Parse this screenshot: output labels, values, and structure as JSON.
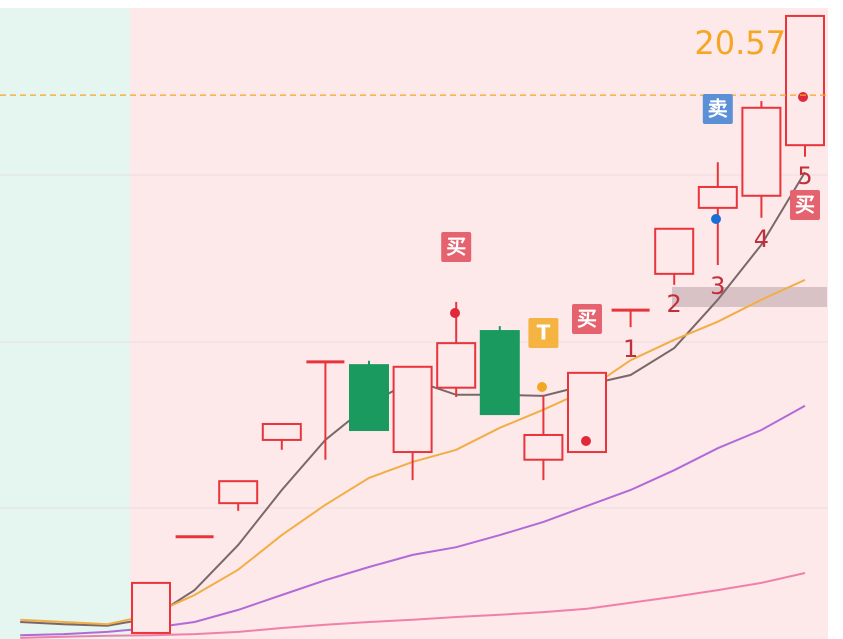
{
  "chart_data": {
    "type": "candlestick",
    "categories": [
      null,
      null,
      null,
      null,
      null,
      null,
      null,
      null,
      null,
      null,
      null,
      null,
      null,
      null,
      null,
      null,
      null,
      null,
      null
    ],
    "open": [
      null,
      null,
      null,
      10.79,
      12.54,
      13.15,
      14.3,
      15.72,
      15.66,
      14.08,
      15.25,
      16.28,
      13.94,
      14.08,
      16.66,
      17.32,
      18.52,
      18.74,
      19.66
    ],
    "close": [
      null,
      null,
      null,
      11.7,
      12.54,
      13.55,
      14.59,
      15.72,
      14.48,
      15.63,
      16.06,
      14.77,
      14.39,
      15.52,
      16.66,
      18.14,
      18.9,
      20.34,
      22.01
    ],
    "high": [
      null,
      null,
      null,
      11.7,
      12.54,
      13.55,
      14.59,
      15.72,
      15.74,
      15.63,
      16.81,
      16.37,
      15.12,
      15.52,
      16.66,
      18.14,
      19.35,
      20.46,
      22.01
    ],
    "low": [
      null,
      null,
      null,
      10.79,
      12.54,
      13.01,
      14.12,
      13.94,
      14.48,
      13.57,
      15.08,
      14.77,
      13.57,
      14.08,
      16.35,
      17.12,
      17.48,
      18.34,
      19.45
    ],
    "up_color": "#e8353b",
    "down_color": "#1a9a5e",
    "series": [
      {
        "color": "#7a6868",
        "values": [
          10.99,
          10.95,
          10.92,
          11.06,
          11.57,
          12.39,
          13.39,
          14.3,
          14.94,
          15.39,
          15.12,
          15.12,
          15.1,
          15.3,
          15.48,
          15.97,
          16.85,
          17.85,
          19.17
        ]
      },
      {
        "color": "#f2ae45",
        "values": [
          11.03,
          10.99,
          10.95,
          11.12,
          11.48,
          11.94,
          12.57,
          13.12,
          13.61,
          13.9,
          14.12,
          14.52,
          14.85,
          15.21,
          15.75,
          16.12,
          16.45,
          16.85,
          17.21
        ]
      },
      {
        "color": "#b26ad6",
        "values": [
          10.75,
          10.77,
          10.81,
          10.88,
          10.99,
          11.21,
          11.48,
          11.75,
          11.99,
          12.21,
          12.35,
          12.57,
          12.81,
          13.1,
          13.39,
          13.75,
          14.15,
          14.48,
          14.92
        ]
      },
      {
        "color": "#f080aa",
        "values": [
          10.7,
          10.72,
          10.74,
          10.75,
          10.77,
          10.81,
          10.88,
          10.94,
          10.99,
          11.03,
          11.08,
          11.12,
          11.17,
          11.23,
          11.34,
          11.45,
          11.57,
          11.7,
          11.88
        ]
      }
    ],
    "ylim": [
      10.68,
      22.3
    ],
    "price_line": 20.57,
    "signals": [
      {
        "text": "买",
        "color": "#e5636f"
      },
      {
        "text": "T",
        "color": "#f5b342"
      },
      {
        "text": "买",
        "color": "#e5636f"
      },
      {
        "text": "卖",
        "color": "#5b8fd6"
      },
      {
        "text": "买",
        "color": "#e5636f"
      }
    ],
    "counters": [
      "1",
      "2",
      "3",
      "4",
      "5"
    ]
  }
}
